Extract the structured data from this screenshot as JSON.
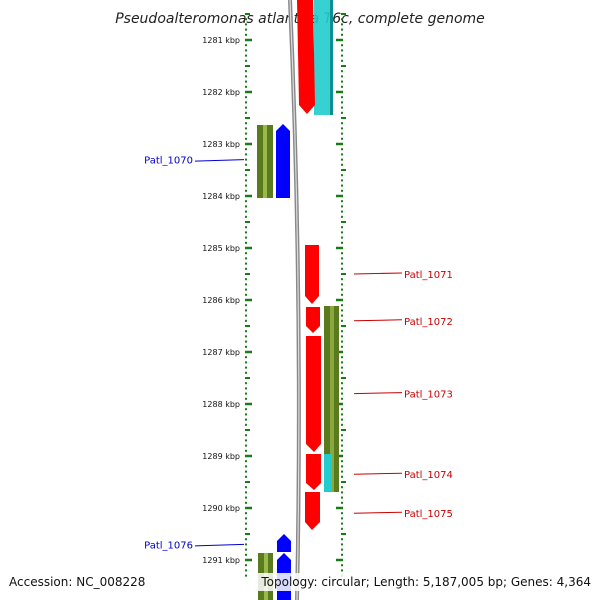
{
  "title": "Pseudoalteromonas atlantica T6c, complete genome",
  "accession": "Accession: NC_008228",
  "summary": "Topology: circular; Length: 5,187,005 bp; Genes: 4,364",
  "ruler": {
    "start_kbp": 1280.5,
    "end_kbp": 1291.3,
    "tick_labels": [
      "1281 kbp",
      "1282 kbp",
      "1283 kbp",
      "1284 kbp",
      "1285 kbp",
      "1286 kbp",
      "1287 kbp",
      "1288 kbp",
      "1289 kbp",
      "1290 kbp",
      "1291 kbp"
    ]
  },
  "colors": {
    "forward_cds": "#0000ff",
    "reverse_cds": "#ff0000",
    "gene_forward": "#5a7a1e",
    "gene_reverse": "#5a7a1e",
    "other": "#22cccc",
    "ruler": "#1a7a1a",
    "backbone": "#888888",
    "label_forward": "#0000cc",
    "label_reverse": "#cc0000"
  },
  "labels": [
    {
      "text": "Patl_1070",
      "side": "left",
      "kbp": 1283.3
    },
    {
      "text": "Patl_1071",
      "side": "right",
      "kbp": 1285.5
    },
    {
      "text": "Patl_1072",
      "side": "right",
      "kbp": 1286.4
    },
    {
      "text": "Patl_1073",
      "side": "right",
      "kbp": 1287.8
    },
    {
      "text": "Patl_1074",
      "side": "right",
      "kbp": 1289.35
    },
    {
      "text": "Patl_1075",
      "side": "right",
      "kbp": 1290.1
    },
    {
      "text": "Patl_1076",
      "side": "left",
      "kbp": 1290.7
    }
  ]
}
